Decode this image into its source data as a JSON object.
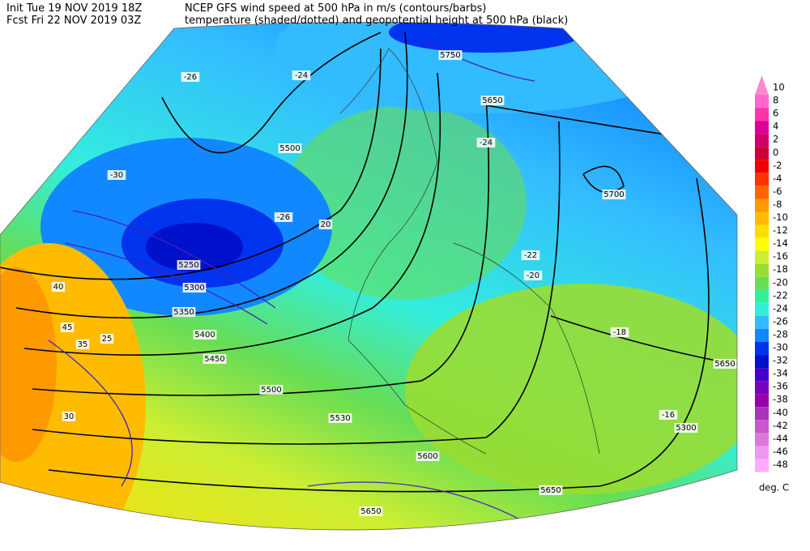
{
  "header": {
    "init": "Init  Tue 19 NOV 2019 18Z",
    "fcst": "Fcst Fri 22 NOV 2019 03Z",
    "line1": "NCEP GFS wind speed at 500 hPa in m/s (contours/barbs)",
    "line2": "temperature (shaded/dotted) and geopotential height at 500 hPa (black)"
  },
  "colorbar": {
    "labels": [
      10,
      8,
      6,
      4,
      2,
      0,
      -2,
      -4,
      -6,
      -8,
      -10,
      -12,
      -14,
      -16,
      -18,
      -20,
      -22,
      -24,
      -26,
      -28,
      -30,
      -32,
      -34,
      -36,
      -38,
      -40,
      -42,
      -44,
      -46,
      -48
    ],
    "colors": [
      "#ff88cc",
      "#ff66cc",
      "#ff33aa",
      "#dd0099",
      "#cc0066",
      "#cc0033",
      "#ee0000",
      "#ff3300",
      "#ff6600",
      "#ff9900",
      "#ffbb00",
      "#ffdd00",
      "#ffff00",
      "#ccee33",
      "#99dd33",
      "#66dd55",
      "#33ee99",
      "#33eedd",
      "#33bbff",
      "#1188ff",
      "#0033ee",
      "#0011cc",
      "#4400cc",
      "#7700bb",
      "#9900aa",
      "#aa33bb",
      "#cc55cc",
      "#dd77dd",
      "#ee99ee",
      "#ffaaff"
    ],
    "unit": "deg. C"
  },
  "map_labels": [
    "5250",
    "5300",
    "5350",
    "5400",
    "5450",
    "5500",
    "5530",
    "5600",
    "5650",
    "5700",
    "5650",
    "5650",
    "5300",
    "5500",
    "5750",
    "5650",
    "-30",
    "-26",
    "-24",
    "-22",
    "-20",
    "-18",
    "-16",
    "-24",
    "-26",
    "20",
    "25",
    "30",
    "40",
    "45",
    "35"
  ]
}
